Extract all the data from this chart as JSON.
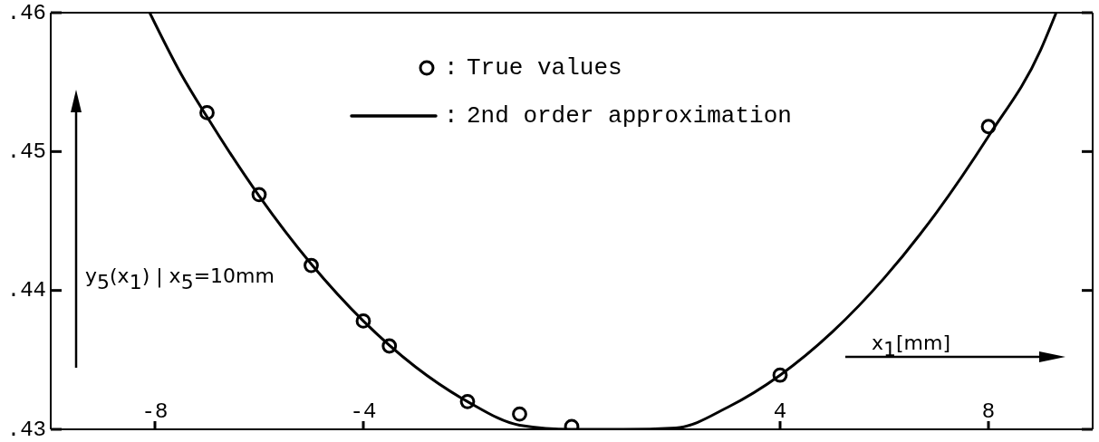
{
  "chart_data": {
    "type": "line",
    "xlabel": "x$_{1}$[mm]",
    "ylabel": "y$_{5}$(x$_{1}$) | x$_{5}$=10mm",
    "xlim": [
      -10,
      10
    ],
    "xticks": [
      -8,
      -4,
      4,
      8
    ],
    "ylim": [
      0.43,
      0.46
    ],
    "yticks": [
      {
        "value": 0.43,
        "label": ".43"
      },
      {
        "value": 0.44,
        "label": ".44"
      },
      {
        "value": 0.45,
        "label": ".45"
      },
      {
        "value": 0.46,
        "label": ".46"
      }
    ],
    "legend": "top",
    "annotations": [
      ":",
      ":"
    ],
    "series": [
      {
        "name": "True values",
        "type": "scatter",
        "marker": "circle",
        "color": "#000000",
        "x": [
          -7,
          -6,
          -5,
          -4,
          -3.5,
          -2,
          -1,
          0,
          4,
          8
        ],
        "values": [
          0.4528,
          0.4469,
          0.4418,
          0.4378,
          0.436,
          0.432,
          0.4311,
          0.4302,
          0.4339,
          0.4518
        ]
      },
      {
        "name": "2nd order approximation",
        "type": "line",
        "marker": "none",
        "color": "#000000",
        "x": [
          -8.1,
          -7.5,
          -7,
          -6,
          -5,
          -4,
          -3,
          -2,
          -1,
          0,
          1,
          2,
          3,
          4,
          5,
          6,
          7,
          8,
          9,
          9.3
        ],
        "values": [
          0.46,
          0.4556,
          0.4525,
          0.4468,
          0.4419,
          0.4378,
          0.4345,
          0.432,
          0.4303,
          0.43,
          0.43,
          0.4301,
          0.4316,
          0.4339,
          0.437,
          0.4409,
          0.4456,
          0.4511,
          0.4573,
          0.46
        ]
      }
    ]
  }
}
